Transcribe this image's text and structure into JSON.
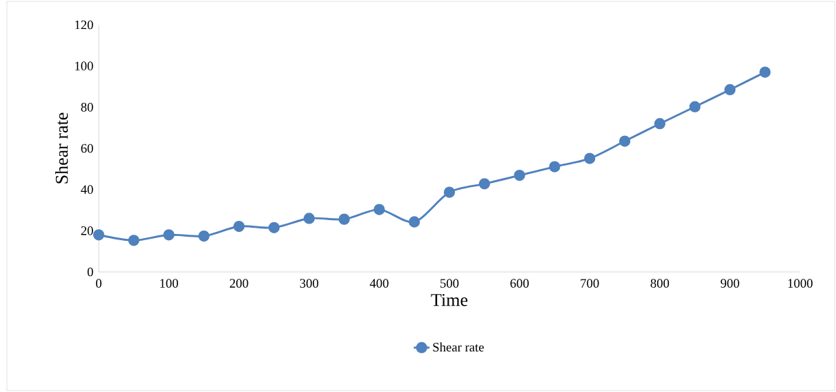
{
  "chart_data": {
    "type": "line",
    "xlabel": "Time",
    "ylabel": "Shear rate",
    "x": [
      0,
      50,
      100,
      150,
      200,
      250,
      300,
      350,
      400,
      450,
      500,
      550,
      600,
      650,
      700,
      750,
      800,
      850,
      900,
      950
    ],
    "series": [
      {
        "name": "Shear rate",
        "color": "#4f81bd",
        "values": [
          18,
          15.3,
          18,
          17.4,
          22.1,
          21.5,
          26,
          25.6,
          30.3,
          24.3,
          38.7,
          42.8,
          46.9,
          51.1,
          55.1,
          63.5,
          72,
          80.2,
          88.5,
          97
        ]
      }
    ],
    "xlim": [
      0,
      1000
    ],
    "ylim": [
      0,
      120
    ],
    "xticks": [
      0,
      100,
      200,
      300,
      400,
      500,
      600,
      700,
      800,
      900,
      1000
    ],
    "yticks": [
      0,
      20,
      40,
      60,
      80,
      100,
      120
    ],
    "legend": "bottom",
    "marker": "circle",
    "line_style": "solid"
  }
}
